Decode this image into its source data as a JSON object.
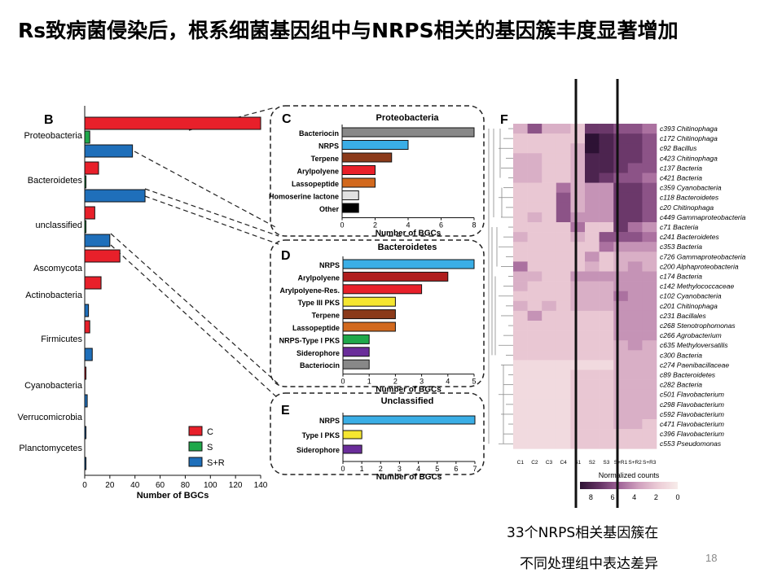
{
  "slide": {
    "title": "Rs致病菌侵染后，根系细菌基因组中与NRPS相关的基因簇丰度显著增加",
    "caption_line1": "33个NRPS相关基因簇在",
    "caption_line2": "不同处理组中表达差异",
    "page_number": "18"
  },
  "colors": {
    "C": "#e8202a",
    "S": "#1fa84a",
    "S+R": "#1f6fba"
  },
  "chart_data": [
    {
      "type": "bar",
      "orientation": "horizontal",
      "panel": "B",
      "categories": [
        "Proteobacteria",
        "Bacteroidetes",
        "unclassified",
        "Ascomycota",
        "Actinobacteria",
        "Firmicutes",
        "Cyanobacteria",
        "Verrucomicrobia",
        "Planctomycetes"
      ],
      "series": [
        {
          "name": "C",
          "color": "#e8202a",
          "values": [
            140,
            11,
            8,
            28,
            13,
            4,
            1,
            0,
            0
          ]
        },
        {
          "name": "S",
          "color": "#1fa84a",
          "values": [
            4,
            1,
            1,
            0,
            0,
            0,
            0,
            0,
            0
          ]
        },
        {
          "name": "S+R",
          "color": "#1f6fba",
          "values": [
            38,
            48,
            20,
            0,
            3,
            6,
            2,
            1,
            1
          ]
        }
      ],
      "xlabel": "Number of BGCs",
      "xlim": [
        0,
        140
      ],
      "xticks": [
        0,
        20,
        40,
        60,
        80,
        100,
        120,
        140
      ],
      "legend": "bottom-right"
    },
    {
      "type": "bar",
      "orientation": "horizontal",
      "panel": "C",
      "title": "Proteobacteria",
      "categories": [
        "Bacteriocin",
        "NRPS",
        "Terpene",
        "Arylpolyene",
        "Lassopeptide",
        "Homoserine lactone",
        "Other"
      ],
      "values": [
        8,
        4,
        3,
        2,
        2,
        1,
        1
      ],
      "colors": [
        "#888888",
        "#3aaee6",
        "#8b3a1a",
        "#e8202a",
        "#d2691e",
        "#e0e0e0",
        "#000000"
      ],
      "xlabel": "Number of BGCs",
      "xlim": [
        0,
        8
      ],
      "xticks": [
        0,
        2,
        4,
        6,
        8
      ]
    },
    {
      "type": "bar",
      "orientation": "horizontal",
      "panel": "D",
      "title": "Bacteroidetes",
      "categories": [
        "NRPS",
        "Arylpolyene",
        "Arylpolyene-Res.",
        "Type III PKS",
        "Terpene",
        "Lassopeptide",
        "NRPS-Type I PKS",
        "Siderophore",
        "Bacteriocin"
      ],
      "values": [
        5,
        4,
        3,
        2,
        2,
        2,
        1,
        1,
        1
      ],
      "colors": [
        "#3aaee6",
        "#b01e1e",
        "#e8202a",
        "#f5e630",
        "#8b3a1a",
        "#d2691e",
        "#1fa84a",
        "#6a2d9a",
        "#888888"
      ],
      "xlabel": "Number of BGCs",
      "xlim": [
        0,
        5
      ],
      "xticks": [
        0,
        1,
        2,
        3,
        4,
        5
      ]
    },
    {
      "type": "bar",
      "orientation": "horizontal",
      "panel": "E",
      "title": "Unclassified",
      "categories": [
        "NRPS",
        "Type I PKS",
        "Siderophore"
      ],
      "values": [
        7,
        1,
        1
      ],
      "colors": [
        "#3aaee6",
        "#f5e630",
        "#6a2d9a"
      ],
      "xlabel": "Number of BGCs",
      "xlim": [
        0,
        7
      ],
      "xticks": [
        0,
        1,
        2,
        3,
        4,
        5,
        6,
        7
      ]
    },
    {
      "type": "heatmap",
      "panel": "F",
      "columns": [
        "C1",
        "C2",
        "C3",
        "C4",
        "S1",
        "S2",
        "S3",
        "S+R1",
        "S+R2",
        "S+R3"
      ],
      "rows": [
        "c393 Chitinophaga",
        "c172 Chitinophaga",
        "c92 Bacillus",
        "c423 Chitinophaga",
        "c137 Bacteria",
        "c421 Bacteria",
        "c359 Cyanobacteria",
        "c118 Bacteroidetes",
        "c20 Chitinophaga",
        "c449 Gammaproteobacteria",
        "c71 Bacteria",
        "c241 Bacteroidetes",
        "c353 Bacteria",
        "c726 Gammaproteobacteria",
        "c200 Alphaproteobacteria",
        "c174 Bacteria",
        "c142 Methylococcaceae",
        "c102 Cyanobacteria",
        "c201 Chitinophaga",
        "c231 Bacillales",
        "c268 Stenotrophomonas",
        "c266 Agrobacterium",
        "c635 Methyloversatilis",
        "c300 Bacteria",
        "c274 Paenibacillaceae",
        "c89 Bacteroidetes",
        "c282 Bacteria",
        "c501 Flavobacterium",
        "c298 Flavobacterium",
        "c592 Flavobacterium",
        "c471 Flavobacterium",
        "c396 Flavobacterium",
        "c553 Pseudomonas"
      ],
      "values": [
        [
          3,
          6,
          3,
          3,
          2,
          7,
          7,
          6,
          6,
          5
        ],
        [
          2,
          2,
          2,
          2,
          2,
          9,
          8,
          7,
          7,
          6
        ],
        [
          2,
          2,
          2,
          2,
          3,
          9,
          8,
          7,
          7,
          6
        ],
        [
          3,
          3,
          2,
          2,
          3,
          8,
          8,
          7,
          7,
          6
        ],
        [
          3,
          3,
          2,
          2,
          3,
          8,
          8,
          7,
          6,
          6
        ],
        [
          3,
          3,
          2,
          2,
          3,
          8,
          7,
          6,
          6,
          5
        ],
        [
          2,
          2,
          2,
          5,
          3,
          4,
          4,
          7,
          7,
          6
        ],
        [
          2,
          2,
          2,
          6,
          3,
          4,
          4,
          7,
          7,
          6
        ],
        [
          2,
          2,
          2,
          6,
          3,
          4,
          4,
          7,
          7,
          6
        ],
        [
          2,
          3,
          2,
          6,
          4,
          4,
          4,
          7,
          7,
          6
        ],
        [
          2,
          2,
          2,
          2,
          5,
          2,
          2,
          7,
          5,
          4
        ],
        [
          3,
          2,
          2,
          2,
          3,
          2,
          6,
          6,
          6,
          5
        ],
        [
          2,
          2,
          2,
          2,
          2,
          2,
          5,
          4,
          4,
          4
        ],
        [
          2,
          2,
          2,
          2,
          2,
          4,
          2,
          3,
          3,
          3
        ],
        [
          5,
          2,
          2,
          2,
          2,
          3,
          2,
          3,
          4,
          3
        ],
        [
          3,
          3,
          2,
          2,
          4,
          4,
          4,
          4,
          4,
          4
        ],
        [
          3,
          2,
          2,
          2,
          3,
          3,
          3,
          4,
          4,
          4
        ],
        [
          2,
          2,
          2,
          2,
          3,
          3,
          3,
          5,
          4,
          4
        ],
        [
          3,
          2,
          3,
          2,
          3,
          3,
          3,
          4,
          4,
          4
        ],
        [
          2,
          4,
          2,
          2,
          2,
          2,
          2,
          4,
          4,
          4
        ],
        [
          2,
          2,
          2,
          2,
          2,
          2,
          2,
          4,
          4,
          4
        ],
        [
          2,
          2,
          2,
          2,
          2,
          2,
          2,
          4,
          4,
          4
        ],
        [
          2,
          2,
          2,
          2,
          2,
          2,
          2,
          3,
          4,
          3
        ],
        [
          2,
          2,
          2,
          2,
          2,
          2,
          2,
          3,
          3,
          3
        ],
        [
          1,
          1,
          1,
          1,
          1,
          1,
          1,
          3,
          3,
          3
        ],
        [
          1,
          1,
          1,
          1,
          2,
          2,
          2,
          3,
          3,
          3
        ],
        [
          1,
          1,
          1,
          1,
          2,
          2,
          2,
          3,
          3,
          3
        ],
        [
          1,
          1,
          1,
          1,
          2,
          2,
          2,
          3,
          3,
          3
        ],
        [
          1,
          1,
          1,
          1,
          2,
          2,
          2,
          3,
          3,
          3
        ],
        [
          1,
          1,
          1,
          1,
          2,
          2,
          2,
          3,
          3,
          3
        ],
        [
          1,
          1,
          1,
          1,
          2,
          2,
          2,
          3,
          3,
          2
        ],
        [
          1,
          1,
          1,
          1,
          2,
          2,
          2,
          2,
          2,
          2
        ],
        [
          1,
          1,
          1,
          1,
          2,
          2,
          2,
          2,
          2,
          2
        ]
      ],
      "colorbar_label": "Normalized counts",
      "colorbar_ticks": [
        8,
        6,
        4,
        2,
        0
      ],
      "colorbar_range": [
        0,
        9
      ]
    }
  ]
}
